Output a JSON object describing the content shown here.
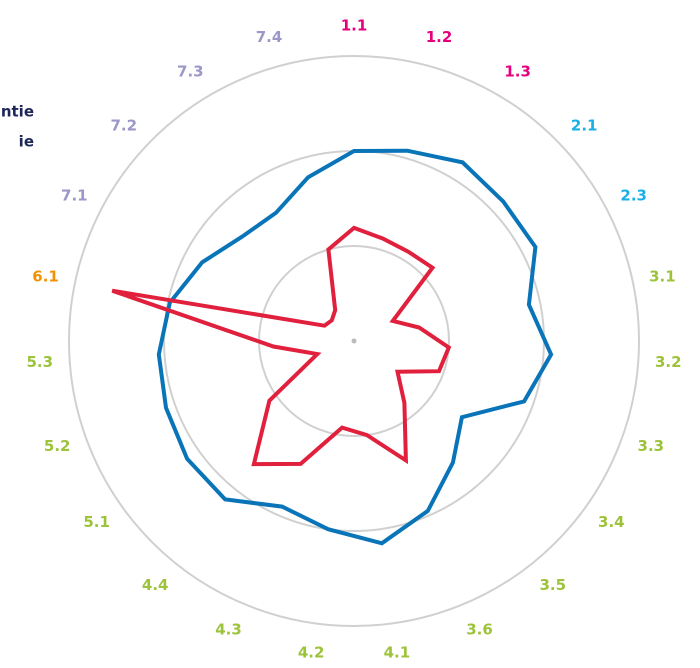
{
  "chart_data": {
    "type": "radar",
    "categories": [
      "1.1",
      "1.2",
      "1.3",
      "2.1",
      "2.3",
      "3.1",
      "3.2",
      "3.3",
      "3.4",
      "3.5",
      "3.6",
      "4.1",
      "4.2",
      "4.3",
      "4.4",
      "5.1",
      "5.2",
      "5.3",
      "6.1",
      "7.1",
      "7.2",
      "7.3",
      "7.4"
    ],
    "category_colors": [
      "#e6007e",
      "#e6007e",
      "#e6007e",
      "#1ab0e6",
      "#1ab0e6",
      "#9dc33b",
      "#9dc33b",
      "#9dc33b",
      "#9dc33b",
      "#9dc33b",
      "#9dc33b",
      "#9dc33b",
      "#9dc33b",
      "#9dc33b",
      "#9dc33b",
      "#9dc33b",
      "#9dc33b",
      "#9dc33b",
      "#f39200",
      "#9b97c9",
      "#9b97c9",
      "#9b97c9",
      "#9b97c9"
    ],
    "series": [
      {
        "name": "ntie",
        "color": "#0a74b9",
        "values": [
          2.0,
          2.08,
          2.2,
          2.15,
          2.15,
          1.88,
          2.08,
          1.9,
          1.39,
          1.65,
          1.95,
          2.15,
          2.0,
          1.9,
          2.15,
          2.15,
          2.1,
          2.06,
          1.98,
          1.8,
          1.61,
          1.58,
          1.79
        ]
      },
      {
        "name": "ie",
        "color": "#e0203c",
        "values": [
          1.19,
          1.12,
          1.1,
          1.13,
          0.46,
          0.7,
          1.0,
          0.95,
          0.56,
          0.84,
          1.37,
          1.0,
          0.92,
          1.41,
          1.67,
          1.09,
          0.41,
          0.85,
          2.6,
          0.35,
          0.32,
          0.38,
          1.0
        ]
      }
    ],
    "ylim": [
      0,
      3
    ],
    "yticks": [
      1,
      2,
      3
    ],
    "grid": true
  }
}
